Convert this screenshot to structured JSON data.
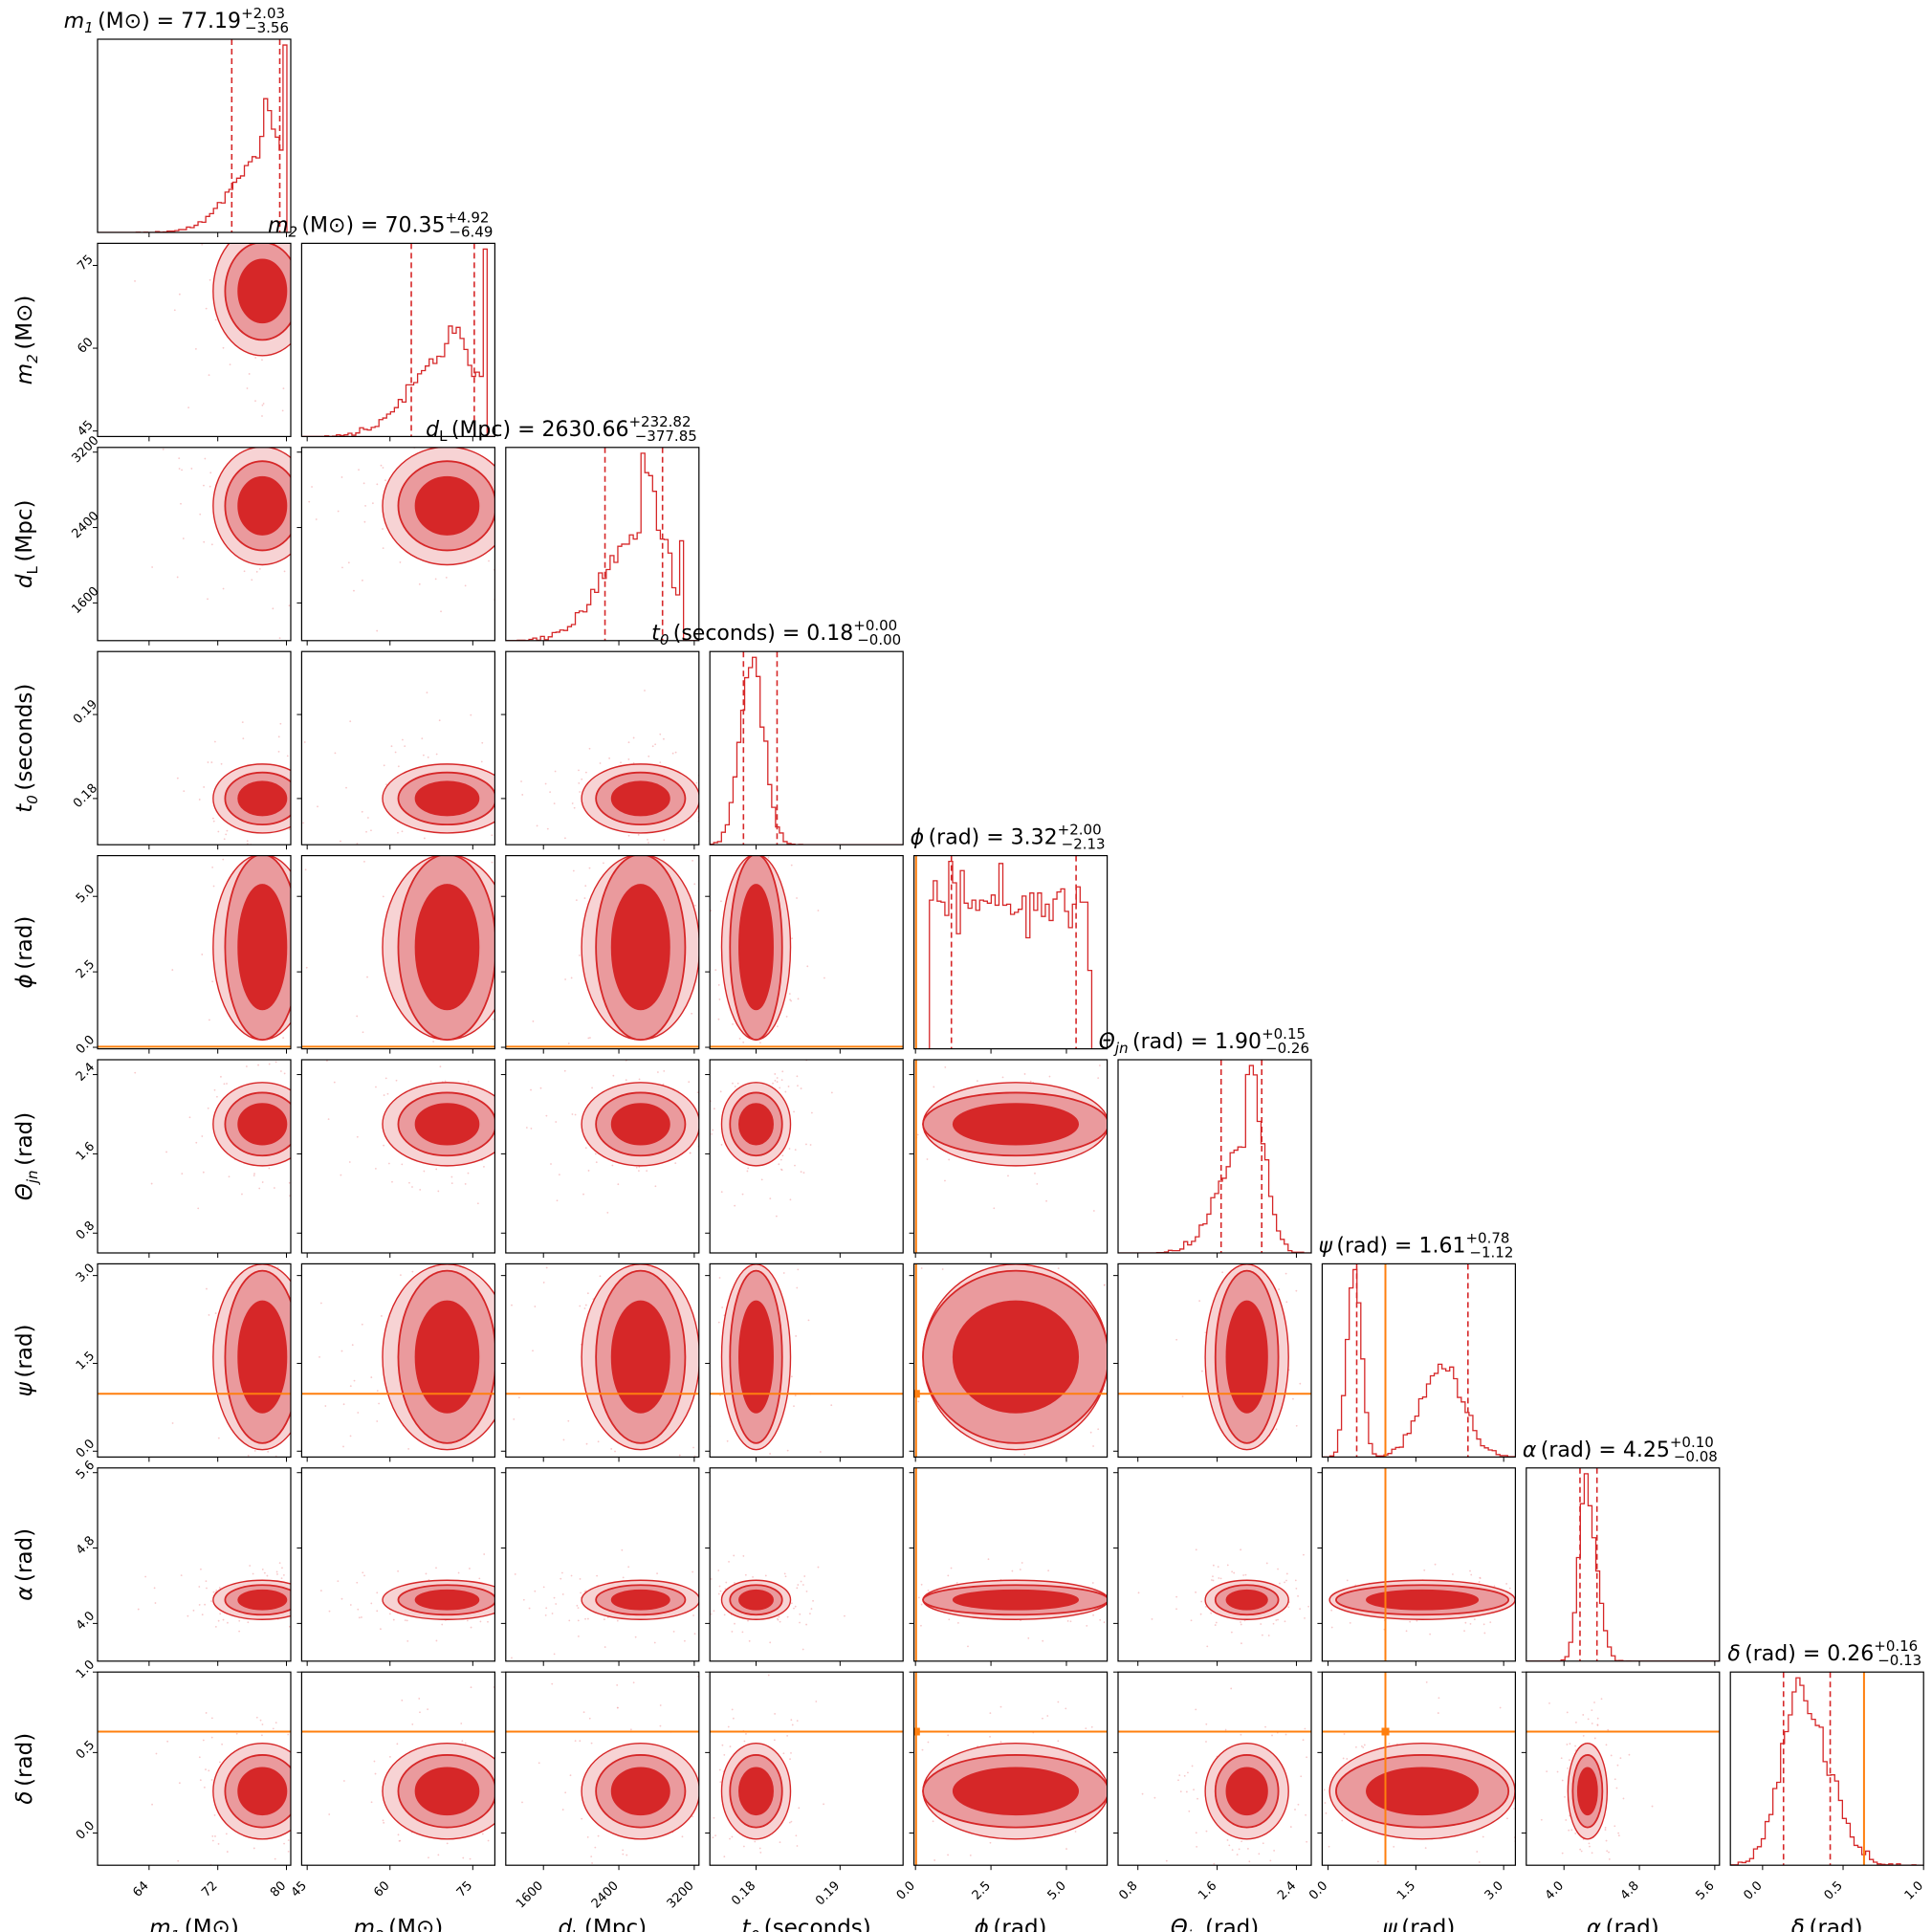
{
  "chart_data": {
    "type": "corner",
    "parameters": [
      {
        "key": "m1",
        "sym": "m",
        "sub": "1",
        "unit": "(M⊙)",
        "median": "77.19",
        "plus": "+2.03",
        "minus": "−3.56",
        "range": [
          58,
          80.5
        ],
        "ticks": [
          64,
          72,
          80
        ],
        "tick_labels": [
          "64",
          "72",
          "80"
        ],
        "q": [
          73.63,
          79.22
        ],
        "hist_shape": "left-skew"
      },
      {
        "key": "m2",
        "sym": "m",
        "sub": "2",
        "unit": "(M⊙)",
        "median": "70.35",
        "plus": "+4.92",
        "minus": "−6.49",
        "range": [
          44,
          79
        ],
        "ticks": [
          45,
          60,
          75
        ],
        "tick_labels": [
          "45",
          "60",
          "75"
        ],
        "q": [
          63.86,
          75.27
        ],
        "hist_shape": "left-skew"
      },
      {
        "key": "dL",
        "sym": "d",
        "sub": "L",
        "unit": "(Mpc)",
        "median": "2630.66",
        "plus": "+232.82",
        "minus": "−377.85",
        "range": [
          1200,
          3250
        ],
        "ticks": [
          1600,
          2400,
          3200
        ],
        "tick_labels": [
          "1600",
          "2400",
          "3200"
        ],
        "q": [
          2252.81,
          2863.48
        ],
        "hist_shape": "left-skew"
      },
      {
        "key": "t0",
        "sym": "t",
        "sub": "0",
        "unit": "(seconds)",
        "median": "0.18",
        "plus": "+0.00",
        "minus": "−0.00",
        "range": [
          0.1745,
          0.1975
        ],
        "ticks": [
          0.18,
          0.19
        ],
        "tick_labels": [
          "0.18",
          "0.19"
        ],
        "q": [
          0.1785,
          0.1825
        ],
        "hist_shape": "peak"
      },
      {
        "key": "phi",
        "sym": "ϕ",
        "sub": "",
        "unit": "(rad)",
        "median": "3.32",
        "plus": "+2.00",
        "minus": "−2.13",
        "range": [
          -0.05,
          6.35
        ],
        "ticks": [
          0.0,
          2.5,
          5.0
        ],
        "tick_labels": [
          "0.0",
          "2.5",
          "5.0"
        ],
        "q": [
          1.19,
          5.32
        ],
        "hist_shape": "flat",
        "truth": 0.02
      },
      {
        "key": "theta",
        "sym": "Θ",
        "sub": "jn",
        "unit": "(rad)",
        "median": "1.90",
        "plus": "+0.15",
        "minus": "−0.26",
        "range": [
          0.6,
          2.55
        ],
        "ticks": [
          0.8,
          1.6,
          2.4
        ],
        "tick_labels": [
          "0.8",
          "1.6",
          "2.4"
        ],
        "q": [
          1.64,
          2.05
        ],
        "hist_shape": "left-skew"
      },
      {
        "key": "psi",
        "sym": "ψ",
        "sub": "",
        "unit": "(rad)",
        "median": "1.61",
        "plus": "+0.78",
        "minus": "−1.12",
        "range": [
          -0.1,
          3.2
        ],
        "ticks": [
          0.0,
          1.5,
          3.0
        ],
        "tick_labels": [
          "0.0",
          "1.5",
          "3.0"
        ],
        "q": [
          0.49,
          2.39
        ],
        "hist_shape": "bimodal",
        "truth": 0.98
      },
      {
        "key": "alpha",
        "sym": "α",
        "sub": "",
        "unit": "(rad)",
        "median": "4.25",
        "plus": "+0.10",
        "minus": "−0.08",
        "range": [
          3.6,
          5.65
        ],
        "ticks": [
          4.0,
          4.8,
          5.6
        ],
        "tick_labels": [
          "4.0",
          "4.8",
          "5.6"
        ],
        "q": [
          4.17,
          4.35
        ],
        "hist_shape": "narrow"
      },
      {
        "key": "delta",
        "sym": "δ",
        "sub": "",
        "unit": "(rad)",
        "median": "0.26",
        "plus": "+0.16",
        "minus": "−0.13",
        "range": [
          -0.2,
          1.0
        ],
        "ticks": [
          0.0,
          0.5,
          1.0
        ],
        "tick_labels": [
          "0.0",
          "0.5",
          "1.0"
        ],
        "q": [
          0.13,
          0.42
        ],
        "hist_shape": "right-skew",
        "truth": 0.63
      }
    ],
    "colors": {
      "posterior": "#d62728",
      "mid": "#ea9a9d",
      "outer": "#f7d3d4",
      "truth": "#ff7f0e",
      "quantile": "#d62728"
    }
  }
}
